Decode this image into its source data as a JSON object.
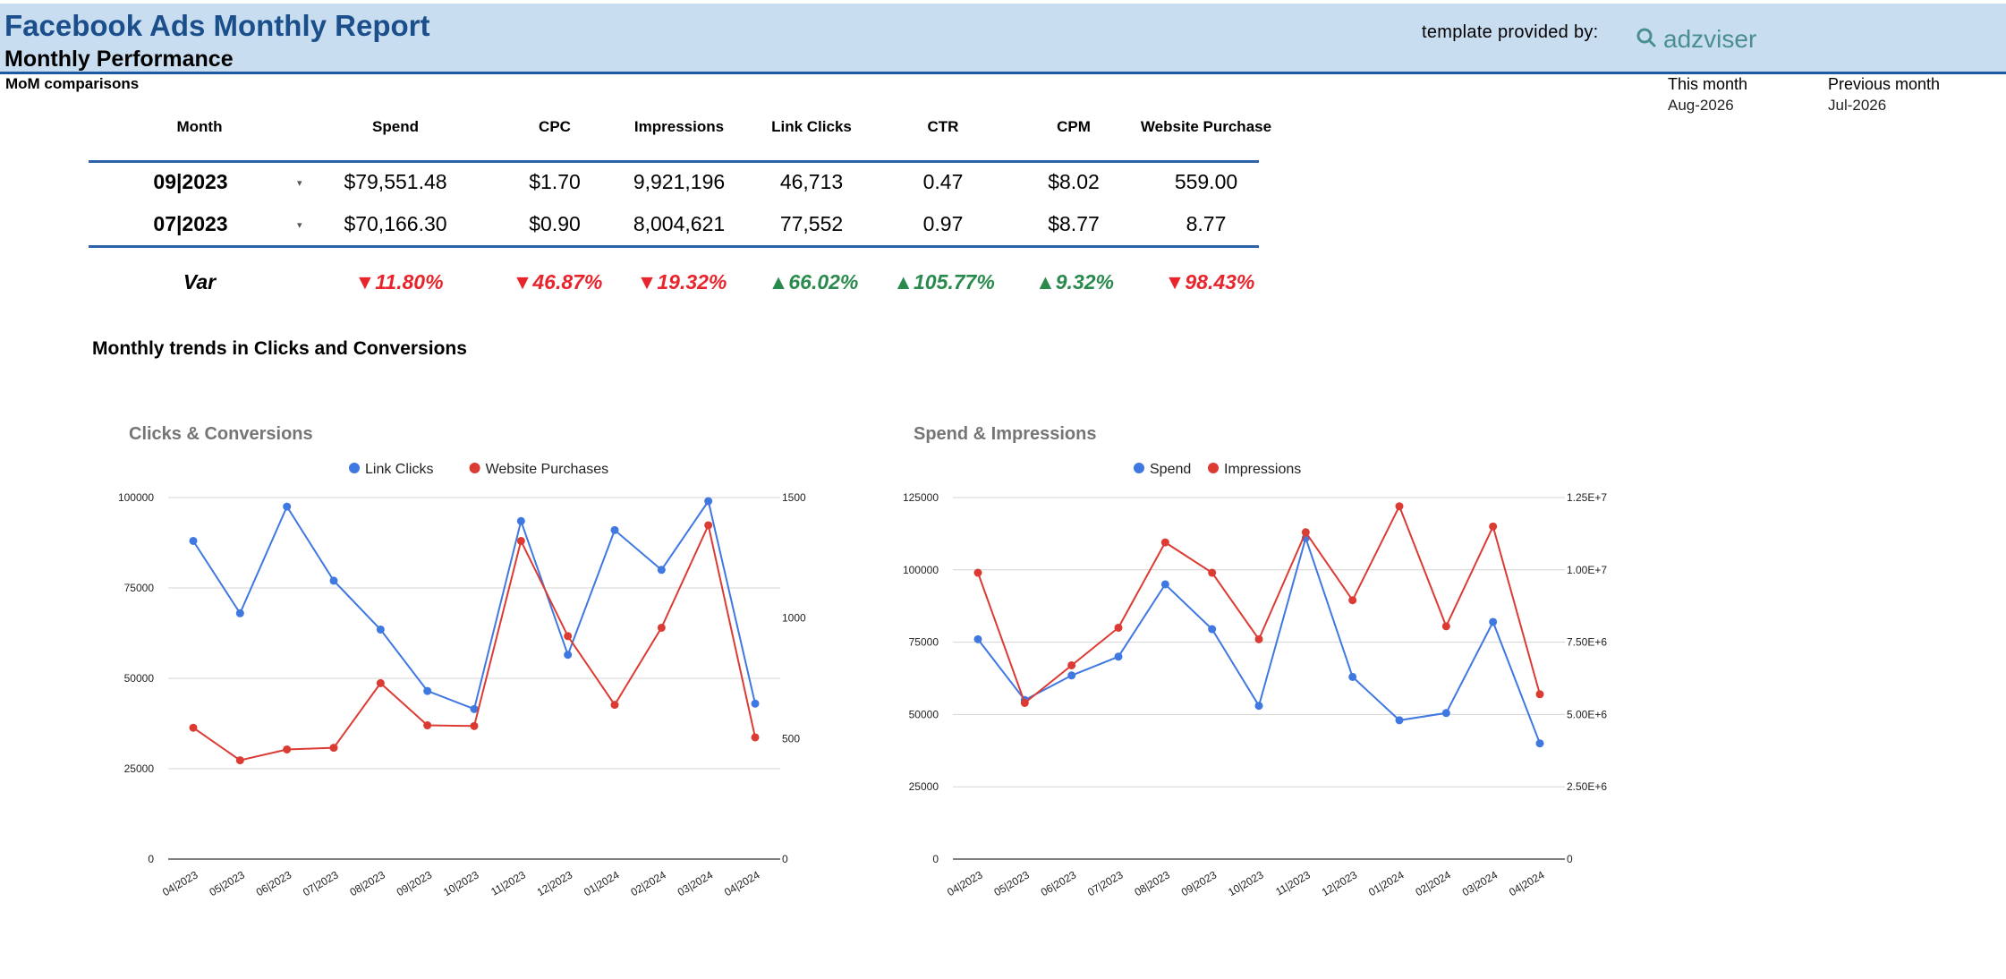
{
  "header": {
    "title": "Facebook Ads Monthly Report",
    "subtitle": "Monthly Performance",
    "template_label": "template provided by:",
    "logo_text": "adzviser",
    "logo_icon": "magnifier-icon"
  },
  "mom": {
    "section_label": "MoM comparisons",
    "this_month_label": "This month",
    "this_month_value": "Aug-2026",
    "previous_month_label": "Previous month",
    "previous_month_value": "Jul-2026"
  },
  "table": {
    "headers": [
      "Month",
      "Spend",
      "CPC",
      "Impressions",
      "Link Clicks",
      "CTR",
      "CPM",
      "Website Purchase"
    ],
    "rows": [
      {
        "month": "09|2023",
        "spend": "$79,551.48",
        "cpc": "$1.70",
        "impressions": "9,921,196",
        "link_clicks": "46,713",
        "ctr": "0.47",
        "cpm": "$8.02",
        "purchase": "559.00"
      },
      {
        "month": "07|2023",
        "spend": "$70,166.30",
        "cpc": "$0.90",
        "impressions": "8,004,621",
        "link_clicks": "77,552",
        "ctr": "0.97",
        "cpm": "$8.77",
        "purchase": "8.77"
      }
    ],
    "var": {
      "label": "Var",
      "spend": "▼11.80%",
      "cpc": "▼46.87%",
      "impressions": "▼19.32%",
      "link_clicks": "▲66.02%",
      "ctr": "▲105.77%",
      "cpm": "▲9.32%",
      "purchase": "▼98.43%"
    }
  },
  "trend_title": "Monthly trends in Clicks and Conversions",
  "colors": {
    "blue": "#3f78e0",
    "red": "#dc3b33",
    "header_bg": "#c9ddf1",
    "title": "#1b4f8c",
    "down": "#e8252d",
    "up": "#2a8a4e"
  },
  "chart_data": [
    {
      "type": "line",
      "title": "Clicks & Conversions",
      "categories": [
        "04|2023",
        "05|2023",
        "06|2023",
        "07|2023",
        "08|2023",
        "09|2023",
        "10|2023",
        "11|2023",
        "12|2023",
        "01|2024",
        "02|2024",
        "03|2024",
        "04|2024"
      ],
      "series": [
        {
          "name": "Link Clicks",
          "axis": "left",
          "color": "#3f78e0",
          "values": [
            88000,
            68000,
            97500,
            77000,
            63500,
            46500,
            41500,
            93500,
            56500,
            91000,
            80000,
            99000,
            43000
          ]
        },
        {
          "name": "Website Purchases",
          "axis": "right",
          "color": "#dc3b33",
          "values": [
            545,
            410,
            455,
            462,
            730,
            555,
            552,
            1320,
            925,
            640,
            960,
            1385,
            505
          ]
        }
      ],
      "y_left": {
        "ticks": [
          "0",
          "25000",
          "50000",
          "75000",
          "100000"
        ],
        "min": 0,
        "max": 100000
      },
      "y_right": {
        "ticks": [
          "0",
          "500",
          "1000",
          "1500"
        ],
        "min": 0,
        "max": 1500
      },
      "legend": "top"
    },
    {
      "type": "line",
      "title": "Spend & Impressions",
      "categories": [
        "04|2023",
        "05|2023",
        "06|2023",
        "07|2023",
        "08|2023",
        "09|2023",
        "10|2023",
        "11|2023",
        "12|2023",
        "01|2024",
        "02|2024",
        "03|2024",
        "04|2024"
      ],
      "series": [
        {
          "name": "Spend",
          "axis": "left",
          "color": "#3f78e0",
          "values": [
            76000,
            55000,
            63500,
            70000,
            95000,
            79500,
            53000,
            111000,
            63000,
            48000,
            50500,
            82000,
            40000
          ]
        },
        {
          "name": "Impressions",
          "axis": "right",
          "color": "#dc3b33",
          "values": [
            9900000,
            5400000,
            6700000,
            8000000,
            10950000,
            9900000,
            7600000,
            11300000,
            8950000,
            12200000,
            8050000,
            11500000,
            5700000
          ]
        }
      ],
      "y_left": {
        "ticks": [
          "0",
          "25000",
          "50000",
          "75000",
          "100000",
          "125000"
        ],
        "min": 0,
        "max": 125000
      },
      "y_right": {
        "ticks": [
          "0",
          "2.50E+6",
          "5.00E+6",
          "7.50E+6",
          "1.00E+7",
          "1.25E+7"
        ],
        "min": 0,
        "max": 12500000
      },
      "legend": "top"
    }
  ]
}
